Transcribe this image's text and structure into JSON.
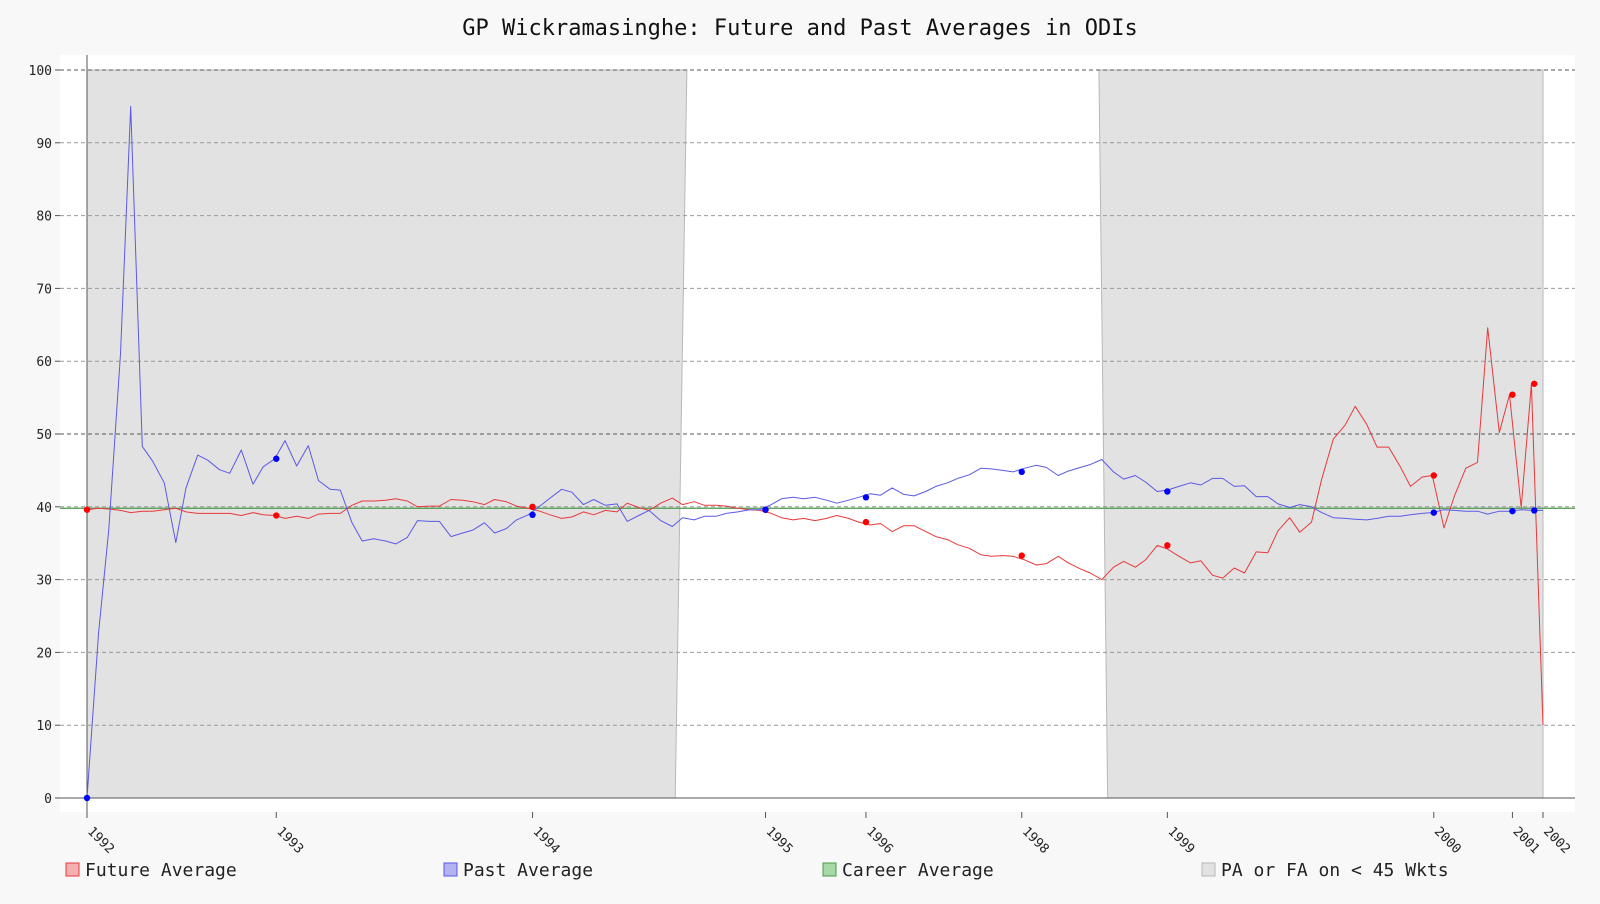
{
  "chart_data": {
    "type": "line",
    "title": "GP Wickramasinghe: Future and Past Averages in ODIs",
    "xlabel": "",
    "ylabel": "",
    "ylim": [
      0,
      100
    ],
    "yticks": [
      0,
      10,
      20,
      30,
      40,
      50,
      60,
      70,
      80,
      90,
      100
    ],
    "xlim": [
      0,
      100
    ],
    "xticks": [
      {
        "label": "1992",
        "x": 0
      },
      {
        "label": "1993",
        "x": 13.0
      },
      {
        "label": "1994",
        "x": 30.6
      },
      {
        "label": "1995",
        "x": 46.6
      },
      {
        "label": "1996",
        "x": 53.5
      },
      {
        "label": "1998",
        "x": 64.2
      },
      {
        "label": "1999",
        "x": 74.2
      },
      {
        "label": "2000",
        "x": 92.5
      },
      {
        "label": "2001",
        "x": 97.9
      },
      {
        "label": "2002",
        "x": 100
      }
    ],
    "grid": true,
    "colors": {
      "future": "#e8393b",
      "past": "#5a5ae6",
      "career": "#4a9a4a",
      "shade": "#e2e2e2"
    },
    "career_average": 39.8,
    "shaded_regions": [
      {
        "start": 0,
        "end_top": 41.2,
        "end_bottom": 40.4
      },
      {
        "start_top": 69.5,
        "start_bottom": 70.1,
        "end": 100
      }
    ],
    "series": [
      {
        "name": "Future Average",
        "key": "future",
        "x": [
          0,
          0.8,
          1.5,
          2.3,
          3.0,
          3.8,
          4.5,
          5.3,
          6.1,
          6.8,
          7.6,
          8.3,
          9.1,
          9.8,
          10.6,
          11.4,
          12.1,
          12.9,
          13.6,
          14.4,
          15.2,
          15.9,
          16.7,
          17.4,
          18.2,
          18.9,
          19.7,
          20.5,
          21.2,
          22.0,
          22.7,
          23.5,
          24.2,
          25.0,
          25.8,
          26.5,
          27.3,
          28.0,
          28.8,
          29.5,
          30.3,
          31.1,
          31.8,
          32.6,
          33.3,
          34.1,
          34.8,
          35.6,
          36.4,
          37.1,
          37.9,
          38.6,
          39.4,
          40.2,
          40.9,
          41.7,
          42.4,
          43.2,
          43.9,
          44.7,
          45.5,
          46.2,
          47.0,
          47.7,
          48.5,
          49.2,
          50.0,
          50.8,
          51.5,
          52.3,
          53.0,
          53.8,
          54.5,
          55.3,
          56.1,
          56.8,
          57.6,
          58.3,
          59.1,
          59.8,
          60.6,
          61.4,
          62.1,
          62.9,
          63.6,
          64.4,
          65.2,
          65.9,
          66.7,
          67.4,
          68.2,
          68.9,
          69.7,
          70.5,
          71.2,
          72.0,
          72.7,
          73.5,
          74.2,
          75.0,
          75.8,
          76.5,
          77.3,
          78.0,
          78.8,
          79.5,
          80.3,
          81.1,
          81.8,
          82.6,
          83.3,
          84.1,
          84.8,
          85.6,
          86.4,
          87.1,
          87.9,
          88.6,
          89.4,
          90.2,
          90.9,
          91.7,
          92.4,
          93.2,
          93.9,
          94.7,
          95.5,
          96.2,
          97.0,
          97.7,
          98.5,
          99.2,
          100
        ],
        "y": [
          39.6,
          39.8,
          39.7,
          39.5,
          39.2,
          39.4,
          39.4,
          39.6,
          39.8,
          39.3,
          39.1,
          39.1,
          39.1,
          39.1,
          38.8,
          39.2,
          38.9,
          38.8,
          38.4,
          38.7,
          38.4,
          39.0,
          39.1,
          39.1,
          40.2,
          40.8,
          40.8,
          40.9,
          41.1,
          40.8,
          40.0,
          40.1,
          40.1,
          41.0,
          40.9,
          40.7,
          40.3,
          41.0,
          40.7,
          40.1,
          39.8,
          39.4,
          38.9,
          38.4,
          38.6,
          39.3,
          38.9,
          39.5,
          39.3,
          40.5,
          39.9,
          39.5,
          40.5,
          41.2,
          40.3,
          40.7,
          40.2,
          40.2,
          40.1,
          39.8,
          39.6,
          39.5,
          39.1,
          38.5,
          38.2,
          38.4,
          38.1,
          38.4,
          38.8,
          38.4,
          37.9,
          37.5,
          37.7,
          36.6,
          37.4,
          37.4,
          36.6,
          35.9,
          35.5,
          34.8,
          34.3,
          33.4,
          33.2,
          33.3,
          33.2,
          32.7,
          32.0,
          32.2,
          33.2,
          32.3,
          31.5,
          30.9,
          30.0,
          31.7,
          32.5,
          31.7,
          32.7,
          34.7,
          34.2,
          33.2,
          32.3,
          32.6,
          30.6,
          30.2,
          31.6,
          30.9,
          33.8,
          33.7,
          36.7,
          38.5,
          36.5,
          37.9,
          43.8,
          49.3,
          51.2,
          53.8,
          51.3,
          48.2,
          48.2,
          45.5,
          42.8,
          44.1,
          44.3,
          37.1,
          41.4,
          45.3,
          46.1,
          64.6,
          50.2,
          55.4,
          39.9,
          56.9,
          10.0
        ]
      },
      {
        "name": "Past Average",
        "key": "past",
        "x": [
          0,
          0.8,
          1.5,
          2.3,
          3.0,
          3.8,
          4.5,
          5.3,
          6.1,
          6.8,
          7.6,
          8.3,
          9.1,
          9.8,
          10.6,
          11.4,
          12.1,
          12.9,
          13.6,
          14.4,
          15.2,
          15.9,
          16.7,
          17.4,
          18.2,
          18.9,
          19.7,
          20.5,
          21.2,
          22.0,
          22.7,
          23.5,
          24.2,
          25.0,
          25.8,
          26.5,
          27.3,
          28.0,
          28.8,
          29.5,
          30.3,
          31.1,
          31.8,
          32.6,
          33.3,
          34.1,
          34.8,
          35.6,
          36.4,
          37.1,
          37.9,
          38.6,
          39.4,
          40.2,
          40.9,
          41.7,
          42.4,
          43.2,
          43.9,
          44.7,
          45.5,
          46.2,
          47.0,
          47.7,
          48.5,
          49.2,
          50.0,
          50.8,
          51.5,
          52.3,
          53.0,
          53.8,
          54.5,
          55.3,
          56.1,
          56.8,
          57.6,
          58.3,
          59.1,
          59.8,
          60.6,
          61.4,
          62.1,
          62.9,
          63.6,
          64.4,
          65.2,
          65.9,
          66.7,
          67.4,
          68.2,
          68.9,
          69.7,
          70.5,
          71.2,
          72.0,
          72.7,
          73.5,
          74.2,
          75.0,
          75.8,
          76.5,
          77.3,
          78.0,
          78.8,
          79.5,
          80.3,
          81.1,
          81.8,
          82.6,
          83.3,
          84.1,
          84.8,
          85.6,
          86.4,
          87.1,
          87.9,
          88.6,
          89.4,
          90.2,
          90.9,
          91.7,
          92.4,
          93.2,
          93.9,
          94.7,
          95.5,
          96.2,
          97.0,
          97.7,
          98.5,
          99.2,
          100
        ],
        "y": [
          0,
          22.7,
          36.9,
          61.0,
          95.0,
          48.3,
          46.3,
          43.3,
          35.1,
          42.6,
          47.1,
          46.4,
          45.1,
          44.6,
          47.8,
          43.1,
          45.5,
          46.6,
          49.1,
          45.6,
          48.4,
          43.6,
          42.4,
          42.3,
          37.8,
          35.3,
          35.6,
          35.3,
          34.9,
          35.8,
          38.1,
          38.0,
          38.0,
          35.9,
          36.4,
          36.8,
          37.8,
          36.4,
          37.0,
          38.2,
          38.9,
          40.1,
          41.2,
          42.4,
          42.0,
          40.3,
          41.0,
          40.2,
          40.4,
          38.0,
          38.8,
          39.5,
          38.1,
          37.3,
          38.5,
          38.2,
          38.7,
          38.7,
          39.1,
          39.3,
          39.6,
          39.6,
          40.3,
          41.1,
          41.3,
          41.1,
          41.3,
          40.9,
          40.5,
          40.9,
          41.3,
          41.8,
          41.6,
          42.6,
          41.7,
          41.5,
          42.1,
          42.8,
          43.3,
          43.9,
          44.4,
          45.3,
          45.2,
          45.0,
          44.8,
          45.3,
          45.7,
          45.4,
          44.3,
          44.9,
          45.4,
          45.8,
          46.5,
          44.8,
          43.8,
          44.3,
          43.4,
          42.1,
          42.3,
          42.8,
          43.3,
          43.0,
          43.9,
          43.9,
          42.8,
          42.9,
          41.4,
          41.4,
          40.4,
          39.9,
          40.3,
          40.0,
          39.2,
          38.5,
          38.4,
          38.3,
          38.2,
          38.4,
          38.7,
          38.7,
          38.9,
          39.1,
          39.2,
          39.6,
          39.5,
          39.4,
          39.4,
          39.0,
          39.4,
          39.4,
          39.6,
          39.5,
          39.5
        ]
      }
    ],
    "markers": {
      "future": [
        [
          0,
          39.6
        ],
        [
          13.0,
          38.8
        ],
        [
          30.6,
          40.0
        ],
        [
          46.6,
          39.6
        ],
        [
          53.5,
          37.9
        ],
        [
          64.2,
          33.3
        ],
        [
          74.2,
          34.7
        ],
        [
          92.5,
          44.3
        ],
        [
          97.9,
          55.4
        ],
        [
          99.4,
          56.9
        ]
      ],
      "past": [
        [
          0,
          0
        ],
        [
          13.0,
          46.6
        ],
        [
          30.6,
          38.9
        ],
        [
          46.6,
          39.6
        ],
        [
          53.5,
          41.3
        ],
        [
          64.2,
          44.8
        ],
        [
          74.2,
          42.1
        ],
        [
          92.5,
          39.2
        ],
        [
          97.9,
          39.4
        ],
        [
          99.4,
          39.5
        ]
      ]
    },
    "legend": {
      "placement": "bottom",
      "entries": [
        {
          "label": "Future Average",
          "key": "future"
        },
        {
          "label": "Past Average",
          "key": "past"
        },
        {
          "label": "Career Average",
          "key": "career"
        },
        {
          "label": "PA or FA on < 45 Wkts",
          "key": "shade"
        }
      ]
    }
  }
}
